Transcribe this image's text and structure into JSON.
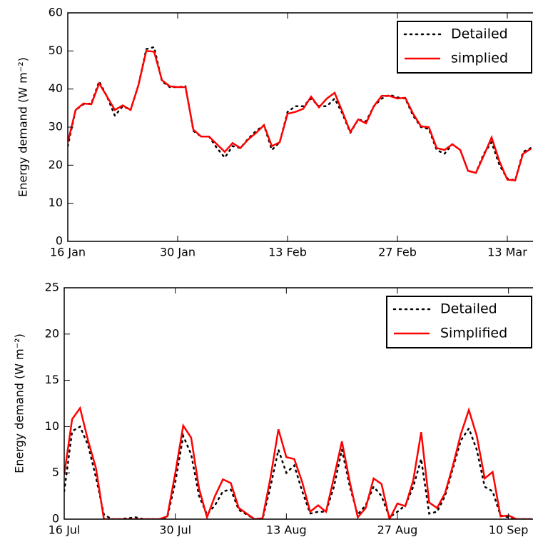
{
  "chart_data": [
    {
      "type": "line",
      "ylabel": "Energy demand (W m⁻²)",
      "x": [
        "16 Jan",
        "17 Jan",
        "18 Jan",
        "19 Jan",
        "20 Jan",
        "21 Jan",
        "22 Jan",
        "23 Jan",
        "24 Jan",
        "25 Jan",
        "26 Jan",
        "27 Jan",
        "28 Jan",
        "29 Jan",
        "30 Jan",
        "31 Jan",
        "1 Feb",
        "2 Feb",
        "3 Feb",
        "4 Feb",
        "5 Feb",
        "6 Feb",
        "7 Feb",
        "8 Feb",
        "9 Feb",
        "10 Feb",
        "11 Feb",
        "12 Feb",
        "13 Feb",
        "14 Feb",
        "15 Feb",
        "16 Feb",
        "17 Feb",
        "18 Feb",
        "19 Feb",
        "20 Feb",
        "21 Feb",
        "22 Feb",
        "23 Feb",
        "24 Feb",
        "25 Feb",
        "26 Feb",
        "27 Feb",
        "28 Feb",
        "1 Mar",
        "2 Mar",
        "3 Mar",
        "4 Mar",
        "5 Mar",
        "6 Mar",
        "7 Mar",
        "8 Mar",
        "9 Mar",
        "10 Mar",
        "11 Mar",
        "12 Mar",
        "13 Mar",
        "14 Mar",
        "15 Mar",
        "16 Mar"
      ],
      "xlim": [
        "16 Jan",
        "16 Mar"
      ],
      "xticks": [
        "16 Jan",
        "30 Jan",
        "13 Feb",
        "27 Feb",
        "13 Mar"
      ],
      "ylim": [
        0,
        60
      ],
      "yticks": [
        0,
        10,
        20,
        30,
        40,
        50,
        60
      ],
      "legend": "upper right",
      "series": [
        {
          "name": "Detailed",
          "color": "#000000",
          "style": "dotted",
          "values": [
            25,
            34.5,
            36,
            36.2,
            42,
            38,
            33,
            35.5,
            34.5,
            41,
            50.5,
            51,
            42,
            40.5,
            40.5,
            40.7,
            29,
            27.5,
            27.5,
            24.5,
            22,
            25,
            24.5,
            27,
            29,
            30.5,
            24,
            26,
            34,
            35.5,
            35.5,
            37.5,
            35.5,
            35.5,
            37.5,
            33.5,
            28.5,
            32,
            31.5,
            35.5,
            37.5,
            38.5,
            37.8,
            37.5,
            33,
            30,
            29.5,
            24,
            23,
            25.5,
            24,
            18.5,
            18,
            23,
            26,
            20,
            16.5,
            16,
            23.5,
            24.5
          ]
        },
        {
          "name": "simplied",
          "color": "#ff0000",
          "style": "solid",
          "values": [
            26,
            34.5,
            36.2,
            36,
            41.5,
            38,
            34.5,
            35.7,
            34.5,
            41,
            50,
            49.8,
            42.3,
            40.7,
            40.5,
            40.5,
            29.3,
            27.5,
            27.5,
            25.5,
            23.5,
            25.8,
            24.5,
            26.8,
            28.5,
            30.5,
            25,
            26,
            33.5,
            34,
            34.8,
            38,
            35.2,
            37.5,
            39,
            34,
            28.7,
            32,
            31,
            35.5,
            38.2,
            38.2,
            37.5,
            37.7,
            33.5,
            30.2,
            30,
            24.5,
            24,
            25.5,
            24,
            18.5,
            18,
            22.5,
            27.3,
            21,
            16.2,
            16,
            23,
            24.3
          ]
        }
      ]
    },
    {
      "type": "line",
      "ylabel": "Energy demand (W m⁻²)",
      "x": [
        "16 Jul",
        "17 Jul",
        "18 Jul",
        "19 Jul",
        "20 Jul",
        "21 Jul",
        "22 Jul",
        "23 Jul",
        "24 Jul",
        "25 Jul",
        "26 Jul",
        "27 Jul",
        "28 Jul",
        "29 Jul",
        "30 Jul",
        "31 Jul",
        "1 Aug",
        "2 Aug",
        "3 Aug",
        "4 Aug",
        "5 Aug",
        "6 Aug",
        "7 Aug",
        "8 Aug",
        "9 Aug",
        "10 Aug",
        "11 Aug",
        "12 Aug",
        "13 Aug",
        "14 Aug",
        "15 Aug",
        "16 Aug",
        "17 Aug",
        "18 Aug",
        "19 Aug",
        "20 Aug",
        "21 Aug",
        "22 Aug",
        "23 Aug",
        "24 Aug",
        "25 Aug",
        "26 Aug",
        "27 Aug",
        "28 Aug",
        "29 Aug",
        "30 Aug",
        "31 Aug",
        "1 Sep",
        "2 Sep",
        "3 Sep",
        "4 Sep",
        "5 Sep",
        "6 Sep",
        "7 Sep",
        "8 Sep",
        "9 Sep",
        "10 Sep",
        "11 Sep",
        "12 Sep",
        "13 Sep"
      ],
      "xlim": [
        "16 Jul",
        "13 Sep"
      ],
      "xticks": [
        "16 Jul",
        "30 Jul",
        "13 Aug",
        "27 Aug",
        "10 Sep"
      ],
      "ylim": [
        0,
        25
      ],
      "yticks": [
        0,
        5,
        10,
        15,
        20,
        25
      ],
      "legend": "upper right",
      "series": [
        {
          "name": "Detailed",
          "color": "#000000",
          "style": "dotted",
          "values": [
            3,
            9.5,
            10,
            8,
            4.5,
            0.5,
            0,
            0,
            0.1,
            0.2,
            0,
            0,
            0,
            0.2,
            4,
            9,
            7,
            2.5,
            0.5,
            1.5,
            3,
            3.2,
            1,
            0.5,
            0,
            0,
            3.5,
            7.5,
            5,
            5.8,
            3,
            0.6,
            0.8,
            0.8,
            3.5,
            7.5,
            3.5,
            0.5,
            1.5,
            3.5,
            2.5,
            0.2,
            0.8,
            1.5,
            3.5,
            6.5,
            0.6,
            0.8,
            2.5,
            5.5,
            8.5,
            9.8,
            7.5,
            3.5,
            3,
            0.4,
            0.2,
            0,
            0,
            0
          ]
        },
        {
          "name": "Simplified",
          "color": "#ff0000",
          "style": "solid",
          "values": [
            4.8,
            10.8,
            12,
            8.5,
            5.5,
            0,
            0,
            0,
            0,
            0,
            0,
            0,
            0,
            0.3,
            5,
            10.1,
            8.8,
            3.3,
            0.2,
            2.5,
            4.3,
            3.9,
            1.2,
            0.6,
            0,
            0.1,
            4.5,
            9.7,
            6.7,
            6.5,
            4,
            0.8,
            1.5,
            0.8,
            4.5,
            8.4,
            4,
            0.2,
            1.2,
            4.4,
            3.8,
            0,
            1.7,
            1.4,
            4.2,
            9.4,
            1.8,
            1.2,
            2.8,
            5.8,
            9.2,
            11.8,
            9,
            4.4,
            5.1,
            0.3,
            0.4,
            0,
            0,
            0
          ]
        }
      ]
    }
  ]
}
